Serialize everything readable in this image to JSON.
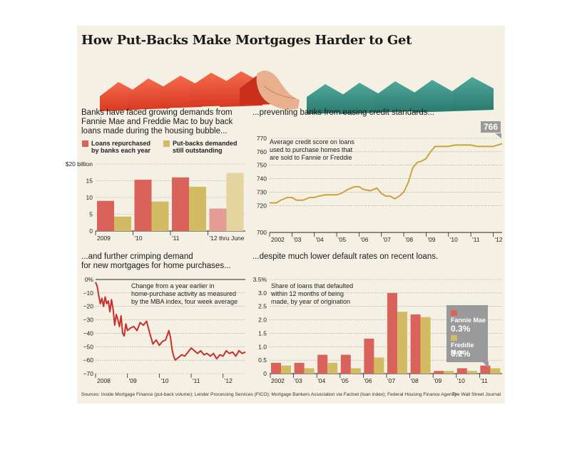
{
  "title": "How Put-Backs Make Mortgages Harder to Get",
  "colors": {
    "red": "#d9635a",
    "gold": "#d3bb63",
    "red_light": "#e59c94",
    "gold_light": "#e4d4a0",
    "line_red": "#c8302b",
    "line_gold": "#c9a43c",
    "panel": "#f5f0e4",
    "callout": "#9a9a9a"
  },
  "chart_data": [
    {
      "id": "putbacks",
      "type": "bar",
      "title": "Banks have faced growing demands from Fannie Mae and Freddie Mac to buy back loans made during the housing bubble...",
      "title_lines": [
        "Banks have faced growing demands from",
        "Fannie Mae and Freddie Mac to buy back",
        "loans made during the housing bubble..."
      ],
      "categories": [
        "2009",
        "'10",
        "'11",
        "'12 thru June"
      ],
      "series": [
        {
          "name": "Loans repurchased by banks each year",
          "name_lines": [
            "Loans repurchased",
            "by banks each year"
          ],
          "values": [
            9.0,
            15.3,
            16.0,
            6.7
          ]
        },
        {
          "name": "Put-backs demanded still outstanding",
          "name_lines": [
            "Put-backs demanded",
            "still outstanding"
          ],
          "values": [
            4.3,
            8.8,
            13.2,
            17.3
          ]
        }
      ],
      "yticks": [
        "$20 billion",
        "15",
        "10",
        "5",
        "0"
      ],
      "ytick_values": [
        20,
        15,
        10,
        5,
        0
      ],
      "ylim": [
        0,
        20
      ],
      "grid": true
    },
    {
      "id": "fico",
      "type": "line",
      "title": "...preventing banks from easing credit standards...",
      "annotation_lines": [
        "Average credit score on loans",
        "used to purchase homes that",
        "are sold to Fannie or Freddie"
      ],
      "callout": "766",
      "xticks": [
        "2002",
        "'03",
        "'04",
        "'05",
        "'06",
        "'07",
        "'08",
        "'09",
        "'10",
        "'11",
        "'12"
      ],
      "xtick_values": [
        2002,
        2003,
        2004,
        2005,
        2006,
        2007,
        2008,
        2009,
        2010,
        2011,
        2012
      ],
      "yticks": [
        770,
        760,
        750,
        740,
        730,
        720,
        700
      ],
      "ylim": [
        700,
        770
      ],
      "xlim": [
        2002,
        2012.4
      ],
      "x": [
        2002.0,
        2002.3,
        2002.5,
        2002.8,
        2003.0,
        2003.2,
        2003.5,
        2003.8,
        2004.0,
        2004.2,
        2004.5,
        2004.8,
        2005.0,
        2005.2,
        2005.5,
        2005.8,
        2006.0,
        2006.2,
        2006.5,
        2006.8,
        2007.0,
        2007.2,
        2007.4,
        2007.6,
        2007.8,
        2008.0,
        2008.2,
        2008.4,
        2008.6,
        2008.8,
        2009.0,
        2009.2,
        2009.4,
        2009.6,
        2009.8,
        2010.0,
        2010.3,
        2010.6,
        2011.0,
        2011.3,
        2011.6,
        2012.0,
        2012.2,
        2012.4
      ],
      "y": [
        722,
        722,
        724,
        726,
        726,
        724,
        724,
        726,
        726,
        727,
        728,
        728,
        728,
        729,
        732,
        734,
        734,
        732,
        731,
        733,
        729,
        727,
        727,
        725,
        727,
        730,
        737,
        748,
        752,
        753,
        755,
        760,
        764,
        764,
        764,
        764,
        765,
        765,
        765,
        764,
        764,
        764,
        765,
        766
      ],
      "grid": true
    },
    {
      "id": "mba",
      "type": "line",
      "title": "...and further crimping demand for new mortgages for home purchases...",
      "title_lines": [
        "...and further crimping demand",
        "for new mortgages for home purchases..."
      ],
      "annotation_lines": [
        "Change from a year earlier in",
        "home-purchase activity as measured",
        "by the MBA index, four week average"
      ],
      "xticks": [
        "2008",
        "'09",
        "'10",
        "'11",
        "'12"
      ],
      "xtick_values": [
        2008,
        2009,
        2010,
        2011,
        2012
      ],
      "yticks": [
        "0%",
        "−10",
        "−20",
        "−30",
        "−40",
        "−50",
        "−60",
        "−70"
      ],
      "ytick_values": [
        0,
        -10,
        -20,
        -30,
        -40,
        -50,
        -60,
        -70
      ],
      "ylim": [
        -70,
        0
      ],
      "xlim": [
        2008,
        2012.7
      ],
      "x": [
        2008.0,
        2008.05,
        2008.1,
        2008.15,
        2008.2,
        2008.25,
        2008.3,
        2008.35,
        2008.4,
        2008.45,
        2008.5,
        2008.55,
        2008.6,
        2008.65,
        2008.7,
        2008.75,
        2008.8,
        2008.85,
        2008.9,
        2008.95,
        2009.0,
        2009.1,
        2009.2,
        2009.3,
        2009.4,
        2009.5,
        2009.6,
        2009.7,
        2009.8,
        2009.9,
        2010.0,
        2010.1,
        2010.2,
        2010.3,
        2010.35,
        2010.4,
        2010.45,
        2010.5,
        2010.6,
        2010.7,
        2010.8,
        2010.9,
        2011.0,
        2011.1,
        2011.2,
        2011.3,
        2011.4,
        2011.5,
        2011.6,
        2011.7,
        2011.8,
        2011.9,
        2012.0,
        2012.1,
        2012.2,
        2012.3,
        2012.4,
        2012.5,
        2012.6,
        2012.7
      ],
      "y": [
        -2,
        -5,
        -12,
        -18,
        -14,
        -20,
        -13,
        -18,
        -16,
        -24,
        -15,
        -22,
        -34,
        -26,
        -30,
        -35,
        -27,
        -40,
        -42,
        -33,
        -38,
        -36,
        -35,
        -38,
        -32,
        -34,
        -31,
        -40,
        -48,
        -45,
        -49,
        -46,
        -45,
        -38,
        -43,
        -52,
        -57,
        -60,
        -58,
        -56,
        -57,
        -54,
        -51,
        -53,
        -55,
        -53,
        -56,
        -55,
        -57,
        -55,
        -59,
        -56,
        -57,
        -53,
        -55,
        -54,
        -57,
        -53,
        -55,
        -54
      ],
      "grid": true
    },
    {
      "id": "defaults",
      "type": "bar",
      "title": "...despite much lower default rates on recent loans.",
      "annotation_lines": [
        "Share of loans that defaulted",
        "within 12 months of being",
        "made, by year of origination"
      ],
      "categories": [
        "2002",
        "'03",
        "'04",
        "'05",
        "'06",
        "'07",
        "'08",
        "'09",
        "'10",
        "'11"
      ],
      "series": [
        {
          "name": "Fannie Mae",
          "values": [
            0.4,
            0.4,
            0.7,
            0.7,
            1.3,
            3.0,
            2.2,
            0.1,
            0.2,
            0.3
          ]
        },
        {
          "name": "Freddie Mac",
          "values": [
            0.3,
            0.2,
            0.4,
            0.2,
            0.6,
            2.3,
            2.1,
            0.1,
            0.1,
            0.2
          ]
        }
      ],
      "callout_values": [
        "0.3%",
        "0.2%"
      ],
      "yticks": [
        "3.5%",
        "3.0",
        "2.5",
        "2.0",
        "1.5",
        "1.0",
        "0.5",
        "0"
      ],
      "ytick_values": [
        3.5,
        3.0,
        2.5,
        2.0,
        1.5,
        1.0,
        0.5,
        0
      ],
      "ylim": [
        0,
        3.5
      ],
      "grid": true
    }
  ],
  "footer": {
    "sources": "Sources: Inside Mortgage Finance (put-back volume); Lender Processing Services (FICO); Mortgage Bankers Association via Factset (loan index); Federal Housing Finance Agency",
    "credit": "The Wall Street Journal"
  }
}
